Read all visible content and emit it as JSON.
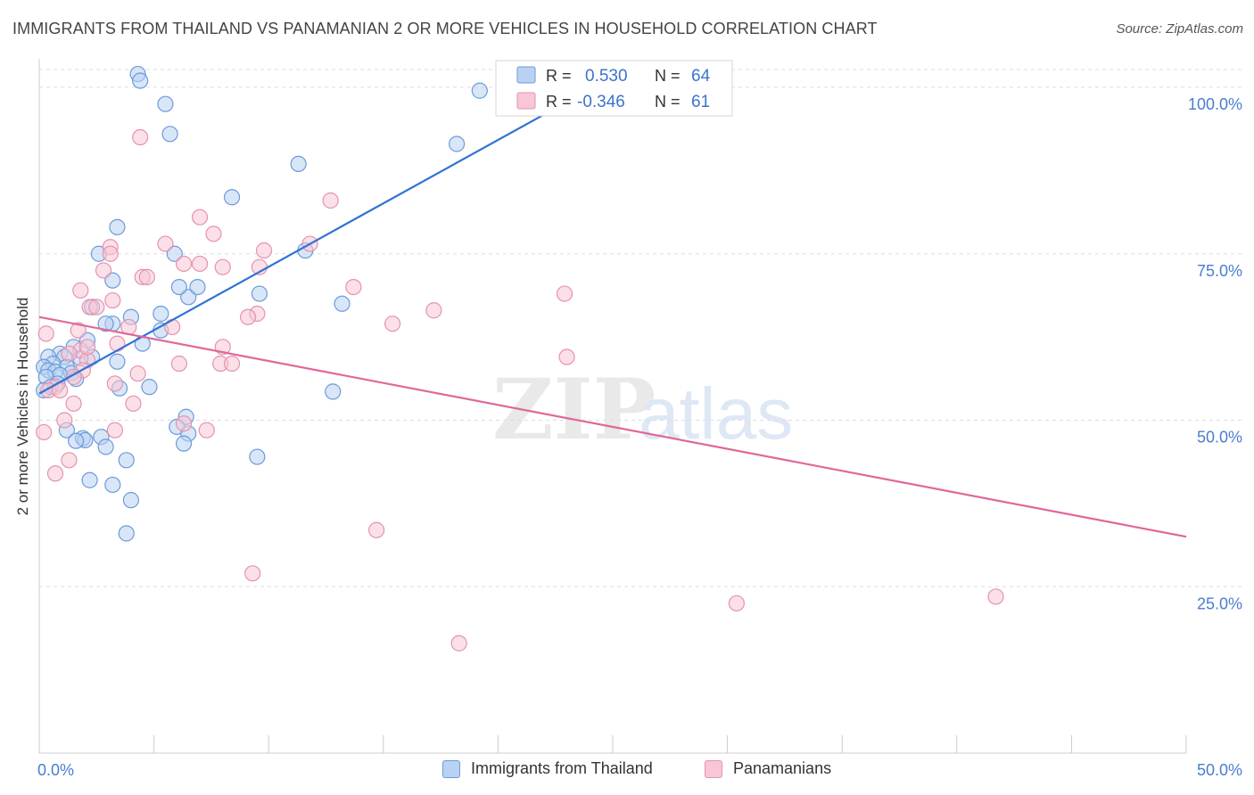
{
  "title": "IMMIGRANTS FROM THAILAND VS PANAMANIAN 2 OR MORE VEHICLES IN HOUSEHOLD CORRELATION CHART",
  "source": "Source: ZipAtlas.com",
  "watermark": {
    "zip": "ZIP",
    "atlas": "atlas"
  },
  "colors": {
    "blue_fill": "#b9d2f3",
    "blue_stroke": "#6b9bd8",
    "blue_line": "#2f73d4",
    "pink_fill": "#f8c6d6",
    "pink_stroke": "#e592ae",
    "pink_line": "#e0679a",
    "axis_text": "#4a7dd0",
    "grid": "#dddddd"
  },
  "stats_legend": [
    {
      "r_label": "R =",
      "r_value": "0.530",
      "n_label": "N =",
      "n_value": "64"
    },
    {
      "r_label": "R =",
      "r_value": "-0.346",
      "n_label": "N =",
      "n_value": "61"
    }
  ],
  "chart_data": {
    "type": "scatter",
    "title": "IMMIGRANTS FROM THAILAND VS PANAMANIAN 2 OR MORE VEHICLES IN HOUSEHOLD CORRELATION CHART",
    "xlabel": "",
    "ylabel": "2 or more Vehicles in Household",
    "xlim": [
      0,
      50
    ],
    "ylim": [
      0,
      102
    ],
    "x_tick_labels": [
      {
        "value": 0,
        "label": "0.0%"
      },
      {
        "value": 50,
        "label": "50.0%"
      }
    ],
    "y_tick_labels": [
      {
        "value": 25,
        "label": "25.0%"
      },
      {
        "value": 50,
        "label": "50.0%"
      },
      {
        "value": 75,
        "label": "75.0%"
      },
      {
        "value": 100,
        "label": "100.0%"
      }
    ],
    "grid": "horizontal dashed",
    "legend": "bottom-center",
    "series": [
      {
        "name": "Immigrants from Thailand",
        "color": "#6b9bd8",
        "trend": {
          "x": [
            0,
            25.2
          ],
          "y": [
            54,
            102
          ]
        },
        "points": [
          [
            4.3,
            102
          ],
          [
            4.4,
            101
          ],
          [
            19.2,
            99.5
          ],
          [
            5.5,
            97.5
          ],
          [
            18.2,
            91.5
          ],
          [
            5.7,
            93
          ],
          [
            11.3,
            88.5
          ],
          [
            8.4,
            83.5
          ],
          [
            3.4,
            79
          ],
          [
            2.6,
            75
          ],
          [
            11.6,
            75.5
          ],
          [
            5.9,
            75
          ],
          [
            3.2,
            71
          ],
          [
            6.5,
            68.5
          ],
          [
            6.9,
            70
          ],
          [
            6.1,
            70
          ],
          [
            9.6,
            69
          ],
          [
            2.3,
            67
          ],
          [
            13.2,
            67.5
          ],
          [
            5.3,
            66
          ],
          [
            4.0,
            65.5
          ],
          [
            3.2,
            64.5
          ],
          [
            2.9,
            64.5
          ],
          [
            5.3,
            63.5
          ],
          [
            2.1,
            62
          ],
          [
            4.5,
            61.5
          ],
          [
            1.5,
            61
          ],
          [
            0.9,
            60
          ],
          [
            1.1,
            59.5
          ],
          [
            2.3,
            59.5
          ],
          [
            0.4,
            59.5
          ],
          [
            1.8,
            59.3
          ],
          [
            3.4,
            58.8
          ],
          [
            0.6,
            58.5
          ],
          [
            1.2,
            58
          ],
          [
            0.2,
            58
          ],
          [
            0.4,
            57.5
          ],
          [
            0.7,
            57.3
          ],
          [
            1.4,
            57.1
          ],
          [
            0.9,
            56.8
          ],
          [
            0.3,
            56.5
          ],
          [
            1.6,
            56.2
          ],
          [
            0.8,
            55.5
          ],
          [
            0.5,
            55
          ],
          [
            0.2,
            54.5
          ],
          [
            3.5,
            54.8
          ],
          [
            4.8,
            55
          ],
          [
            12.8,
            54.3
          ],
          [
            6.4,
            50.5
          ],
          [
            6.0,
            49
          ],
          [
            1.2,
            48.5
          ],
          [
            6.5,
            48
          ],
          [
            2.7,
            47.5
          ],
          [
            1.9,
            47.3
          ],
          [
            2.0,
            47
          ],
          [
            1.6,
            46.9
          ],
          [
            6.3,
            46.5
          ],
          [
            2.9,
            46
          ],
          [
            9.5,
            44.5
          ],
          [
            3.8,
            44
          ],
          [
            2.2,
            41
          ],
          [
            3.2,
            40.3
          ],
          [
            4.0,
            38
          ],
          [
            3.8,
            33
          ]
        ]
      },
      {
        "name": "Panamanians",
        "color": "#e592ae",
        "trend": {
          "x": [
            0,
            50
          ],
          "y": [
            65.5,
            32.5
          ]
        },
        "points": [
          [
            4.4,
            92.5
          ],
          [
            12.7,
            83
          ],
          [
            7.0,
            80.5
          ],
          [
            7.6,
            78
          ],
          [
            5.5,
            76.5
          ],
          [
            3.1,
            76
          ],
          [
            9.8,
            75.5
          ],
          [
            11.8,
            76.5
          ],
          [
            3.1,
            75
          ],
          [
            6.3,
            73.5
          ],
          [
            7.0,
            73.5
          ],
          [
            8.0,
            73
          ],
          [
            9.6,
            73
          ],
          [
            2.8,
            72.5
          ],
          [
            4.5,
            71.5
          ],
          [
            4.7,
            71.5
          ],
          [
            13.7,
            70
          ],
          [
            1.8,
            69.5
          ],
          [
            22.9,
            69
          ],
          [
            3.2,
            68
          ],
          [
            2.2,
            67
          ],
          [
            2.5,
            67
          ],
          [
            17.2,
            66.5
          ],
          [
            9.5,
            66
          ],
          [
            9.1,
            65.5
          ],
          [
            15.4,
            64.5
          ],
          [
            3.9,
            64
          ],
          [
            5.8,
            64
          ],
          [
            1.7,
            63.5
          ],
          [
            0.3,
            63
          ],
          [
            3.4,
            61.5
          ],
          [
            8.0,
            61
          ],
          [
            1.8,
            60.5
          ],
          [
            1.3,
            60
          ],
          [
            23.0,
            59.5
          ],
          [
            2.1,
            59
          ],
          [
            6.1,
            58.5
          ],
          [
            7.9,
            58.5
          ],
          [
            8.4,
            58.5
          ],
          [
            1.9,
            57.5
          ],
          [
            1.5,
            56.5
          ],
          [
            4.3,
            57
          ],
          [
            3.3,
            55.5
          ],
          [
            0.7,
            55
          ],
          [
            0.4,
            54.5
          ],
          [
            0.9,
            54.5
          ],
          [
            4.1,
            52.5
          ],
          [
            1.5,
            52.5
          ],
          [
            1.1,
            50
          ],
          [
            6.3,
            49.5
          ],
          [
            7.3,
            48.5
          ],
          [
            3.3,
            48.5
          ],
          [
            0.2,
            48.2
          ],
          [
            1.3,
            44
          ],
          [
            0.7,
            42
          ],
          [
            14.7,
            33.5
          ],
          [
            9.3,
            27
          ],
          [
            41.7,
            23.5
          ],
          [
            30.4,
            22.5
          ],
          [
            18.3,
            16.5
          ],
          [
            2.1,
            61
          ]
        ]
      }
    ]
  },
  "bottom_legend": [
    {
      "label": "Immigrants from Thailand"
    },
    {
      "label": "Panamanians"
    }
  ]
}
